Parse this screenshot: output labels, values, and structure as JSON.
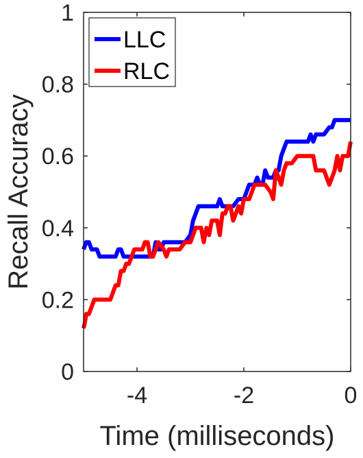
{
  "chart_data": {
    "type": "line",
    "title": "",
    "xlabel": "Time (milliseconds)",
    "ylabel": "Recall Accuracy",
    "xlim": [
      -5,
      0
    ],
    "ylim": [
      0,
      1
    ],
    "xticks": [
      -4,
      -2,
      0
    ],
    "xtick_labels": [
      "-4",
      "-2",
      "0"
    ],
    "yticks": [
      0,
      0.2,
      0.4,
      0.6,
      0.8,
      1
    ],
    "ytick_labels": [
      "0",
      "0.2",
      "0.4",
      "0.6",
      "0.8",
      "1"
    ],
    "grid": false,
    "legend_position": "top-left",
    "series": [
      {
        "name": "LLC",
        "color": "#0000ff",
        "x": [
          -5.0,
          -4.95,
          -4.9,
          -4.85,
          -4.8,
          -4.75,
          -4.7,
          -4.6,
          -4.5,
          -4.4,
          -4.35,
          -4.3,
          -4.25,
          -4.2,
          -4.15,
          -4.1,
          -4.0,
          -3.9,
          -3.8,
          -3.7,
          -3.65,
          -3.6,
          -3.55,
          -3.5,
          -3.4,
          -3.3,
          -3.2,
          -3.1,
          -3.0,
          -2.95,
          -2.9,
          -2.85,
          -2.8,
          -2.7,
          -2.6,
          -2.55,
          -2.5,
          -2.45,
          -2.4,
          -2.35,
          -2.3,
          -2.2,
          -2.1,
          -2.0,
          -1.95,
          -1.9,
          -1.85,
          -1.8,
          -1.75,
          -1.7,
          -1.65,
          -1.6,
          -1.55,
          -1.5,
          -1.45,
          -1.4,
          -1.35,
          -1.3,
          -1.25,
          -1.2,
          -1.1,
          -1.0,
          -0.9,
          -0.8,
          -0.75,
          -0.7,
          -0.65,
          -0.6,
          -0.5,
          -0.4,
          -0.35,
          -0.3,
          -0.25,
          -0.2,
          -0.1,
          0.0
        ],
        "y": [
          0.34,
          0.36,
          0.36,
          0.34,
          0.34,
          0.34,
          0.32,
          0.32,
          0.32,
          0.32,
          0.34,
          0.34,
          0.32,
          0.32,
          0.32,
          0.32,
          0.32,
          0.32,
          0.32,
          0.32,
          0.36,
          0.34,
          0.34,
          0.36,
          0.36,
          0.36,
          0.36,
          0.36,
          0.38,
          0.42,
          0.44,
          0.46,
          0.46,
          0.46,
          0.46,
          0.46,
          0.46,
          0.48,
          0.46,
          0.46,
          0.46,
          0.46,
          0.48,
          0.48,
          0.5,
          0.52,
          0.52,
          0.52,
          0.54,
          0.52,
          0.52,
          0.56,
          0.54,
          0.54,
          0.54,
          0.56,
          0.56,
          0.6,
          0.62,
          0.64,
          0.64,
          0.64,
          0.64,
          0.64,
          0.66,
          0.64,
          0.66,
          0.66,
          0.66,
          0.68,
          0.68,
          0.7,
          0.7,
          0.7,
          0.7,
          0.7
        ]
      },
      {
        "name": "RLC",
        "color": "#ff0000",
        "x": [
          -5.0,
          -4.97,
          -4.95,
          -4.9,
          -4.85,
          -4.8,
          -4.75,
          -4.7,
          -4.6,
          -4.5,
          -4.45,
          -4.4,
          -4.35,
          -4.3,
          -4.25,
          -4.2,
          -4.15,
          -4.1,
          -4.05,
          -4.0,
          -3.9,
          -3.85,
          -3.8,
          -3.75,
          -3.7,
          -3.6,
          -3.5,
          -3.45,
          -3.4,
          -3.3,
          -3.2,
          -3.1,
          -3.0,
          -2.95,
          -2.9,
          -2.8,
          -2.75,
          -2.7,
          -2.65,
          -2.6,
          -2.5,
          -2.45,
          -2.4,
          -2.35,
          -2.3,
          -2.25,
          -2.2,
          -2.1,
          -2.05,
          -2.0,
          -1.95,
          -1.9,
          -1.85,
          -1.8,
          -1.75,
          -1.7,
          -1.6,
          -1.5,
          -1.45,
          -1.4,
          -1.3,
          -1.25,
          -1.2,
          -1.1,
          -1.0,
          -0.9,
          -0.8,
          -0.7,
          -0.65,
          -0.6,
          -0.5,
          -0.4,
          -0.35,
          -0.3,
          -0.25,
          -0.2,
          -0.15,
          -0.1,
          -0.05,
          0.0
        ],
        "y": [
          0.12,
          0.14,
          0.16,
          0.16,
          0.18,
          0.2,
          0.2,
          0.2,
          0.2,
          0.2,
          0.22,
          0.24,
          0.24,
          0.28,
          0.28,
          0.3,
          0.3,
          0.32,
          0.34,
          0.34,
          0.34,
          0.36,
          0.36,
          0.32,
          0.32,
          0.36,
          0.34,
          0.32,
          0.34,
          0.34,
          0.34,
          0.36,
          0.36,
          0.38,
          0.4,
          0.4,
          0.36,
          0.4,
          0.38,
          0.42,
          0.42,
          0.38,
          0.44,
          0.44,
          0.46,
          0.46,
          0.42,
          0.46,
          0.44,
          0.48,
          0.48,
          0.48,
          0.5,
          0.52,
          0.52,
          0.52,
          0.52,
          0.5,
          0.48,
          0.56,
          0.52,
          0.56,
          0.58,
          0.58,
          0.6,
          0.6,
          0.6,
          0.6,
          0.56,
          0.56,
          0.56,
          0.52,
          0.54,
          0.56,
          0.6,
          0.56,
          0.6,
          0.6,
          0.6,
          0.64
        ]
      }
    ]
  }
}
